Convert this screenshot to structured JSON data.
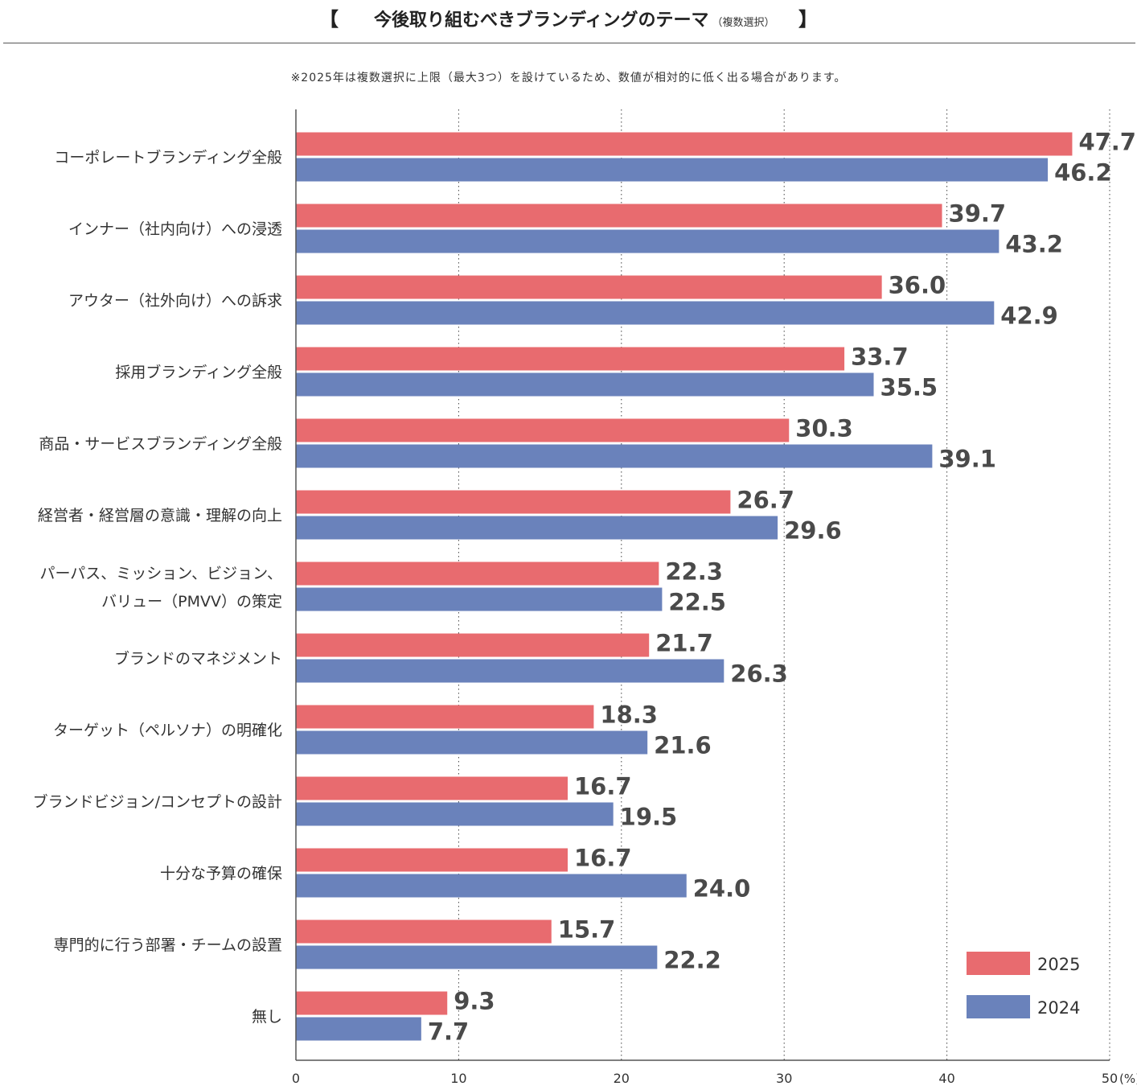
{
  "title": {
    "open_bracket": "【",
    "main": "今後取り組むべきブランディングのテーマ",
    "sub": "（複数選択）",
    "close_bracket": "】"
  },
  "note": "※2025年は複数選択に上限（最大3つ）を設けているため、数値が相対的に低く出る場合があります。",
  "colors": {
    "series_2025": "#e86b6f",
    "series_2024": "#6a82bb",
    "value_label": "#4a4a4a",
    "axis": "#555555",
    "grid": "#444444"
  },
  "chart_data": {
    "type": "bar",
    "orientation": "horizontal",
    "title": "今後取り組むべきブランディングのテーマ（複数選択）",
    "xlabel": "(%)",
    "ylabel": "",
    "xlim": [
      0,
      50
    ],
    "x_ticks": [
      0,
      10,
      20,
      30,
      40,
      50
    ],
    "x_tick_labels": [
      "0",
      "10",
      "20",
      "30",
      "40",
      "50"
    ],
    "x_unit": "(%)",
    "grid": "vertical dotted",
    "legend_position": "bottom-right",
    "categories": [
      [
        "コーポレートブランディング全般"
      ],
      [
        "インナー（社内向け）への浸透"
      ],
      [
        "アウター（社外向け）への訴求"
      ],
      [
        "採用ブランディング全般"
      ],
      [
        "商品・サービスブランディング全般"
      ],
      [
        "経営者・経営層の意識・理解の向上"
      ],
      [
        "パーパス、ミッション、ビジョン、",
        "バリュー（PMVV）の策定"
      ],
      [
        "ブランドのマネジメント"
      ],
      [
        "ターゲット（ペルソナ）の明確化"
      ],
      [
        "ブランドビジョン/コンセプトの設計"
      ],
      [
        "十分な予算の確保"
      ],
      [
        "専門的に行う部署・チームの設置"
      ],
      [
        "無し"
      ]
    ],
    "series": [
      {
        "name": "2025",
        "color": "#e86b6f",
        "values": [
          47.7,
          39.7,
          36.0,
          33.7,
          30.3,
          26.7,
          22.3,
          21.7,
          18.3,
          16.7,
          16.7,
          15.7,
          9.3
        ],
        "labels": [
          "47.7",
          "39.7",
          "36.0",
          "33.7",
          "30.3",
          "26.7",
          "22.3",
          "21.7",
          "18.3",
          "16.7",
          "16.7",
          "15.7",
          "9.3"
        ]
      },
      {
        "name": "2024",
        "color": "#6a82bb",
        "values": [
          46.2,
          43.2,
          42.9,
          35.5,
          39.1,
          29.6,
          22.5,
          26.3,
          21.6,
          19.5,
          24.0,
          22.2,
          7.7
        ],
        "labels": [
          "46.2",
          "43.2",
          "42.9",
          "35.5",
          "39.1",
          "29.6",
          "22.5",
          "26.3",
          "21.6",
          "19.5",
          "24.0",
          "22.2",
          "7.7"
        ]
      }
    ]
  }
}
